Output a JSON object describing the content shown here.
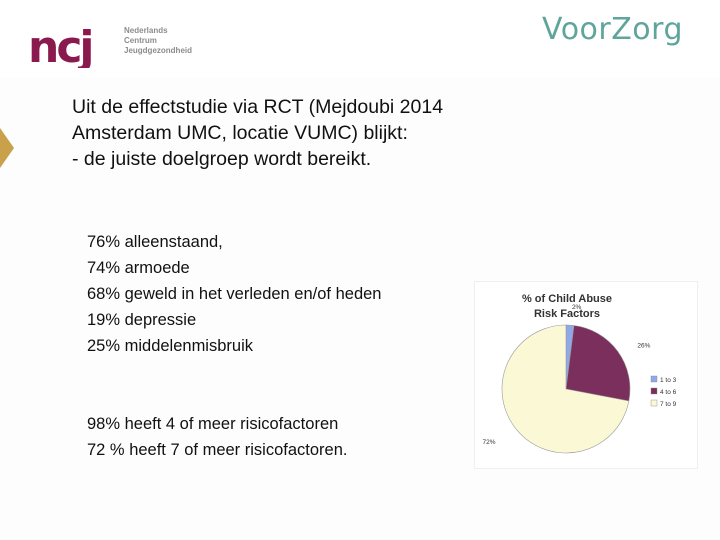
{
  "logos": {
    "ncj_letters": "ncj",
    "ncj_lines": [
      "Nederlands",
      "Centrum",
      "Jeugdgezondheid"
    ],
    "voorzorg": "VoorZorg"
  },
  "title_lines": [
    "Uit de effectstudie via RCT (Mejdoubi 2014",
    "Amsterdam UMC, locatie VUMC) blijkt:",
    "- de juiste doelgroep wordt bereikt."
  ],
  "stats": [
    "76% alleenstaand,",
    "74% armoede",
    "68% geweld in het verleden en/of heden",
    "19% depressie",
    "25% middelenmisbruik"
  ],
  "stats_risk": [
    "98% heeft 4 of meer risicofactoren",
    "72 % heeft 7 of meer risicofactoren."
  ],
  "colors": {
    "ncj_magenta": "#8a1a4e",
    "voorzorg_teal": "#5fa59c",
    "accent_gold": "#c9a14a"
  },
  "chart_data": {
    "type": "pie",
    "title_lines": [
      "% of Child Abuse",
      "Risk Factors"
    ],
    "categories": [
      "1 to 3",
      "4 to 6",
      "7 to 9"
    ],
    "values": [
      2,
      26,
      72
    ],
    "labels": [
      "2%",
      "26%",
      "72%"
    ],
    "colors": [
      "#8fa8e8",
      "#7a2f5d",
      "#fbf8d6"
    ],
    "legend_position": "right"
  }
}
